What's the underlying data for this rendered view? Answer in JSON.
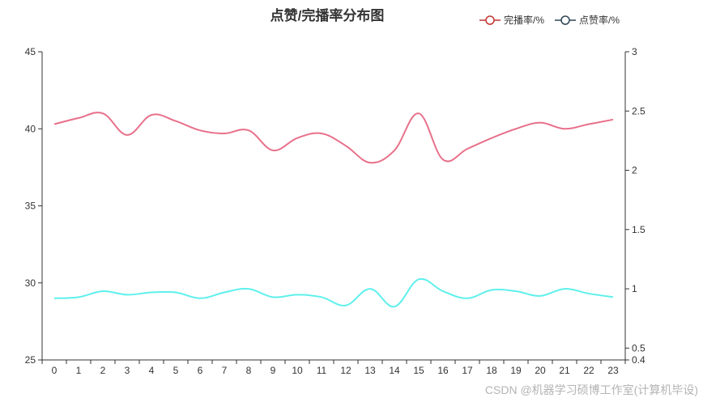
{
  "chart_data": {
    "type": "line",
    "title": "点赞/完播率分布图",
    "x": [
      "0",
      "1",
      "2",
      "3",
      "4",
      "5",
      "6",
      "7",
      "8",
      "9",
      "10",
      "11",
      "12",
      "13",
      "14",
      "15",
      "16",
      "17",
      "18",
      "19",
      "20",
      "21",
      "22",
      "23"
    ],
    "left_axis": {
      "min": 25,
      "max": 45,
      "ticks": [
        "25",
        "30",
        "35",
        "40",
        "45"
      ]
    },
    "right_axis": {
      "min": 0.4,
      "max": 3,
      "ticks": [
        "0.4",
        "0.5",
        "1",
        "1.5",
        "2",
        "2.5",
        "3"
      ]
    },
    "series": [
      {
        "name": "完播率/%",
        "axis": "left",
        "color": "#e8708a",
        "legend_color": "#c23531",
        "values": [
          40.3,
          40.7,
          41.0,
          39.6,
          40.9,
          40.5,
          39.9,
          39.7,
          39.9,
          38.6,
          39.4,
          39.7,
          38.9,
          37.8,
          38.6,
          41.0,
          38.0,
          38.7,
          39.4,
          40.0,
          40.4,
          40.0,
          40.3,
          40.6
        ]
      },
      {
        "name": "点赞率/%",
        "axis": "right",
        "color": "#5ef0ec",
        "legend_color": "#2f4554",
        "values": [
          0.92,
          0.93,
          0.98,
          0.95,
          0.97,
          0.97,
          0.92,
          0.97,
          1.0,
          0.93,
          0.95,
          0.93,
          0.86,
          1.0,
          0.85,
          1.08,
          0.98,
          0.92,
          0.99,
          0.98,
          0.94,
          1.0,
          0.96,
          0.93
        ]
      }
    ],
    "legend_position": "top-right",
    "grid": false
  },
  "watermark": "CSDN @机器学习硕博工作室(计算机毕设)"
}
